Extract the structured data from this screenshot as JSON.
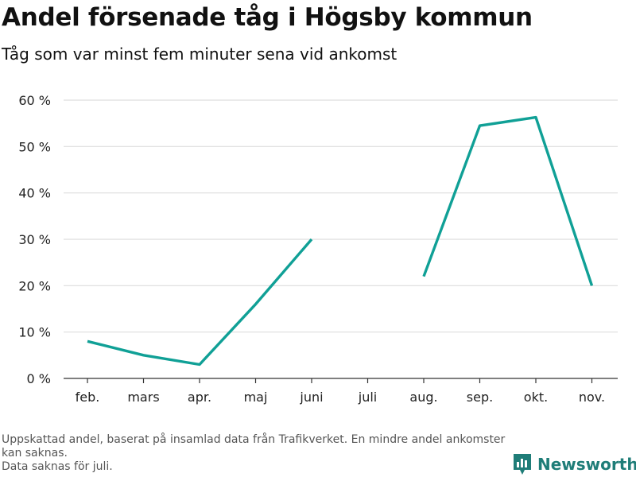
{
  "chart_data": {
    "type": "line",
    "title": "Andel försenade tåg i Högsby kommun",
    "subtitle": "Tåg som var minst fem minuter sena vid ankomst",
    "categories": [
      "feb.",
      "mars",
      "apr.",
      "maj",
      "juni",
      "juli",
      "aug.",
      "sep.",
      "okt.",
      "nov."
    ],
    "series": [
      {
        "values": [
          8,
          5,
          3,
          16,
          30,
          null,
          22,
          54.5,
          56.3,
          20
        ]
      }
    ],
    "ylim": [
      0,
      60
    ],
    "yticks": [
      0,
      10,
      20,
      30,
      40,
      50,
      60
    ],
    "ytick_labels": [
      "0 %",
      "10 %",
      "20 %",
      "30 %",
      "40 %",
      "50 %",
      "60 %"
    ],
    "grid": true,
    "line_color": "#10a096",
    "grid_color": "#dddddd"
  },
  "footnote": {
    "line1": "Uppskattad andel, baserat på insamlad data från Trafikverket. En mindre andel ankomster kan saknas.",
    "line2": "Data saknas för juli."
  },
  "brand": {
    "name": "Newsworthy",
    "icon": "newsworthy-logo-icon",
    "color": "#1f7d78"
  }
}
